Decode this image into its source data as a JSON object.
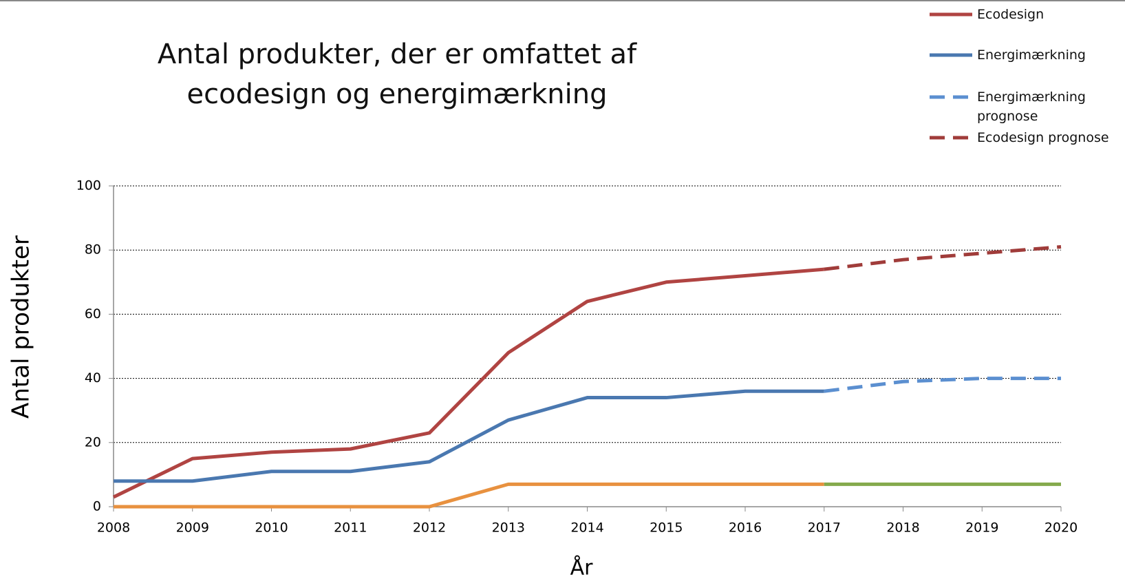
{
  "chart_data": {
    "type": "line",
    "title": "Antal produkter, der er omfattet af ecodesign og energimærkning",
    "x_label": "År",
    "y_label": "Antal produkter",
    "x": [
      2008,
      2009,
      2010,
      2011,
      2012,
      2013,
      2014,
      2015,
      2016,
      2017,
      2018,
      2019,
      2020
    ],
    "series": [
      {
        "name": "Ecodesign",
        "color": "#b04442",
        "dashed": false,
        "values": [
          3,
          15,
          17,
          18,
          23,
          48,
          64,
          70,
          72,
          74,
          null,
          null,
          null
        ]
      },
      {
        "name": "Energimærkning",
        "color": "#4a78b0",
        "dashed": false,
        "values": [
          8,
          8,
          11,
          11,
          14,
          27,
          34,
          34,
          36,
          36,
          null,
          null,
          null
        ]
      },
      {
        "name": "Energimærkning prognose",
        "color": "#5b8fd0",
        "dashed": true,
        "values": [
          null,
          null,
          null,
          null,
          null,
          null,
          null,
          null,
          null,
          36,
          39,
          40,
          40
        ]
      },
      {
        "name": "Ecodesign prognose",
        "color": "#a03c3a",
        "dashed": true,
        "values": [
          null,
          null,
          null,
          null,
          null,
          null,
          null,
          null,
          null,
          74,
          77,
          79,
          81
        ]
      },
      {
        "color": "#e8913f",
        "dashed": false,
        "values": [
          0,
          0,
          0,
          0,
          0,
          7,
          7,
          7,
          7,
          7,
          null,
          null,
          null
        ]
      },
      {
        "color": "#84aa4c",
        "dashed": false,
        "values": [
          null,
          null,
          null,
          null,
          null,
          null,
          null,
          null,
          null,
          7,
          7,
          7,
          7
        ]
      }
    ],
    "xlim": [
      2008,
      2020
    ],
    "xticks": [
      2008,
      2009,
      2010,
      2011,
      2012,
      2013,
      2014,
      2015,
      2016,
      2017,
      2018,
      2019,
      2020
    ],
    "ylim": [
      0,
      100
    ],
    "yticks": [
      0,
      20,
      40,
      60,
      80,
      100
    ],
    "grid": true,
    "legend": "top-right"
  }
}
